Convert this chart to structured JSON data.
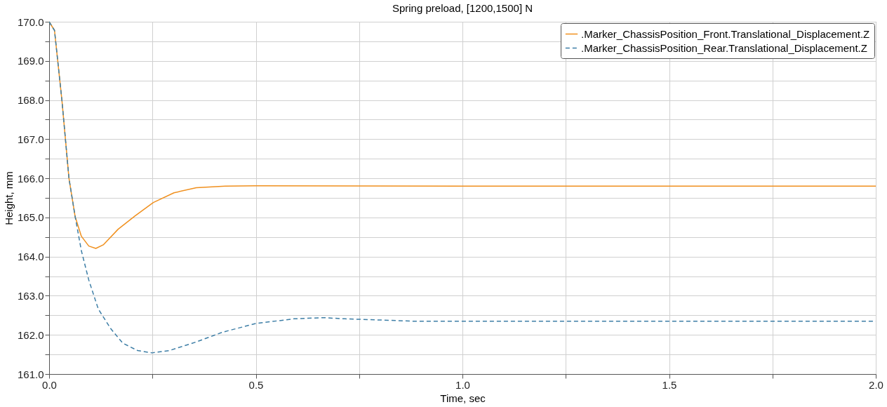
{
  "chart_data": {
    "type": "line",
    "title": "Spring preload, [1200,1500] N",
    "xlabel": "Time, sec",
    "ylabel": "Height, mm",
    "xlim": [
      0,
      2
    ],
    "ylim": [
      161,
      170
    ],
    "xticks": [
      {
        "value": 0,
        "label": "0.0"
      },
      {
        "value": 0.25,
        "label": null
      },
      {
        "value": 0.5,
        "label": "0.5"
      },
      {
        "value": 0.75,
        "label": null
      },
      {
        "value": 1,
        "label": "1.0"
      },
      {
        "value": 1.25,
        "label": null
      },
      {
        "value": 1.5,
        "label": "1.5"
      },
      {
        "value": 1.75,
        "label": null
      },
      {
        "value": 2,
        "label": "2.0"
      }
    ],
    "yticks": [
      {
        "value": 161,
        "label": "161.0"
      },
      {
        "value": 161.5,
        "label": null
      },
      {
        "value": 162,
        "label": "162.0"
      },
      {
        "value": 162.5,
        "label": null
      },
      {
        "value": 163,
        "label": "163.0"
      },
      {
        "value": 163.5,
        "label": null
      },
      {
        "value": 164,
        "label": "164.0"
      },
      {
        "value": 164.5,
        "label": null
      },
      {
        "value": 165,
        "label": "165.0"
      },
      {
        "value": 165.5,
        "label": null
      },
      {
        "value": 166,
        "label": "166.0"
      },
      {
        "value": 166.5,
        "label": null
      },
      {
        "value": 167,
        "label": "167.0"
      },
      {
        "value": 167.5,
        "label": null
      },
      {
        "value": 168,
        "label": "168.0"
      },
      {
        "value": 168.5,
        "label": null
      },
      {
        "value": 169,
        "label": "169.0"
      },
      {
        "value": 169.5,
        "label": null
      },
      {
        "value": 170,
        "label": "170.0"
      }
    ],
    "grid": true,
    "legend": "top right",
    "marker": "none",
    "series": [
      {
        "name": ".Marker_ChassisPosition_Front.Translational_Displacement.Z",
        "color": "#f0901e",
        "line_style": "solid",
        "x": [
          0,
          0.013,
          0.031,
          0.048,
          0.063,
          0.078,
          0.096,
          0.113,
          0.131,
          0.167,
          0.208,
          0.252,
          0.302,
          0.356,
          0.426,
          0.5,
          1.0,
          1.5,
          2.0
        ],
        "values": [
          170,
          169.78,
          167.99,
          166.0,
          165.02,
          164.52,
          164.27,
          164.21,
          164.3,
          164.7,
          165.04,
          165.38,
          165.63,
          165.76,
          165.8,
          165.81,
          165.8,
          165.8,
          165.8
        ]
      },
      {
        "name": ".Marker_ChassisPosition_Rear.Translational_Displacement.Z",
        "color": "#3d7ea6",
        "line_style": "dashed",
        "x": [
          0,
          0.013,
          0.031,
          0.048,
          0.063,
          0.078,
          0.096,
          0.119,
          0.149,
          0.178,
          0.214,
          0.249,
          0.291,
          0.356,
          0.42,
          0.5,
          0.592,
          0.663,
          0.716,
          0.8,
          0.88,
          1.0,
          1.5,
          2.0
        ],
        "values": [
          170,
          169.78,
          167.99,
          166.0,
          165.02,
          164.15,
          163.4,
          162.66,
          162.16,
          161.79,
          161.6,
          161.54,
          161.6,
          161.82,
          162.07,
          162.29,
          162.41,
          162.44,
          162.41,
          162.38,
          162.35,
          162.35,
          162.35,
          162.35
        ]
      }
    ]
  }
}
